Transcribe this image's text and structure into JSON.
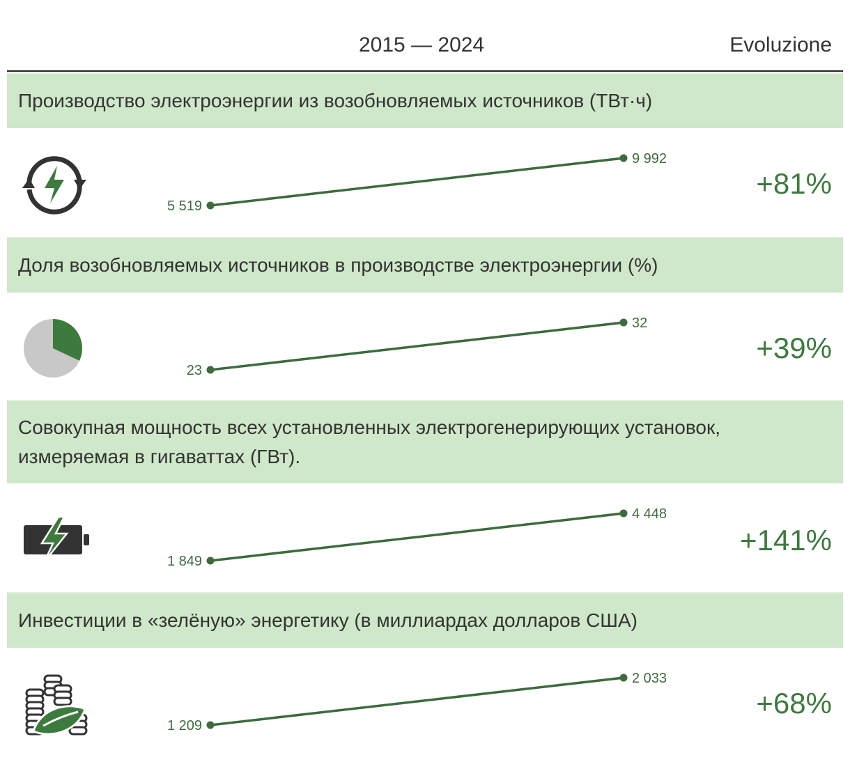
{
  "header": {
    "period": "2015 — 2024",
    "evolution_label": "Evoluzione"
  },
  "colors": {
    "accent": "#3d7a3d",
    "band": "#cfe8c9",
    "icon_dark": "#333333",
    "pie_rest": "#c8c8c8"
  },
  "chart_data": [
    {
      "type": "line",
      "title": "Производство электроэнергии из возобновляемых источников (ТВт·ч)",
      "x": [
        "2015",
        "2024"
      ],
      "values": [
        5519,
        9992
      ],
      "labels": [
        "5 519",
        "9 992"
      ],
      "change": "+81%",
      "icon": "renewable-cycle-icon"
    },
    {
      "type": "line",
      "title": "Доля возобновляемых источников в производстве электроэнергии (%)",
      "x": [
        "2015",
        "2024"
      ],
      "values": [
        23,
        32
      ],
      "labels": [
        "23",
        "32"
      ],
      "change": "+39%",
      "icon": "pie-share-icon",
      "icon_share": 0.32
    },
    {
      "type": "line",
      "title": "Совокупная мощность всех установленных электрогенерирующих установок, измеряемая в гигаваттах (ГВт).",
      "x": [
        "2015",
        "2024"
      ],
      "values": [
        1849,
        4448
      ],
      "labels": [
        "1 849",
        "4 448"
      ],
      "change": "+141%",
      "icon": "battery-bolt-icon"
    },
    {
      "type": "line",
      "title": "Инвестиции в «зелёную» энергетику (в миллиардах долларов США)",
      "x": [
        "2015",
        "2024"
      ],
      "values": [
        1209,
        2033
      ],
      "labels": [
        "1 209",
        "2 033"
      ],
      "change": "+68%",
      "icon": "coins-leaf-icon"
    }
  ]
}
